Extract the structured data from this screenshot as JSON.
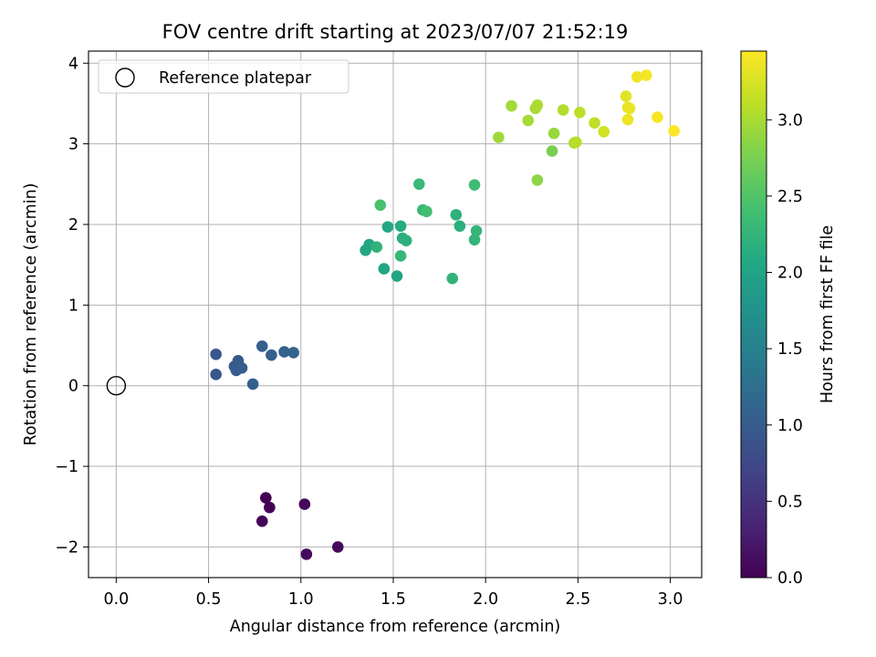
{
  "chart_data": {
    "type": "scatter",
    "title": "FOV centre drift starting at 2023/07/07 21:52:19",
    "xlabel": "Angular distance from reference (arcmin)",
    "ylabel": "Rotation from reference (arcmin)",
    "xlim": [
      -0.15,
      3.17
    ],
    "ylim": [
      -2.38,
      4.15
    ],
    "xticks": [
      0.0,
      0.5,
      1.0,
      1.5,
      2.0,
      2.5,
      3.0
    ],
    "xtick_labels": [
      "0.0",
      "0.5",
      "1.0",
      "1.5",
      "2.0",
      "2.5",
      "3.0"
    ],
    "yticks": [
      -2,
      -1,
      0,
      1,
      2,
      3,
      4
    ],
    "ytick_labels": [
      "−2",
      "−1",
      "0",
      "1",
      "2",
      "3",
      "4"
    ],
    "grid": true,
    "legend": {
      "position": "top-left",
      "entries": [
        "Reference platepar"
      ]
    },
    "reference_point": {
      "label": "Reference platepar",
      "x": 0.0,
      "y": 0.0
    },
    "colorbar": {
      "label": "Hours from first FF file",
      "colormap": "viridis",
      "range": [
        0.0,
        3.45
      ],
      "ticks": [
        0.0,
        0.5,
        1.0,
        1.5,
        2.0,
        2.5,
        3.0
      ],
      "tick_labels": [
        "0.0",
        "0.5",
        "1.0",
        "1.5",
        "2.0",
        "2.5",
        "3.0"
      ]
    },
    "series": [
      {
        "points": [
          [
            0.81,
            -1.39,
            0.0
          ],
          [
            0.83,
            -1.51,
            0.02
          ],
          [
            0.79,
            -1.68,
            0.04
          ],
          [
            1.02,
            -1.47,
            0.06
          ],
          [
            1.2,
            -2.0,
            0.08
          ],
          [
            1.03,
            -2.09,
            0.1
          ],
          [
            0.54,
            0.39,
            0.93
          ],
          [
            0.54,
            0.14,
            0.95
          ],
          [
            0.66,
            0.31,
            0.97
          ],
          [
            0.64,
            0.24,
            0.99
          ],
          [
            0.65,
            0.19,
            1.0
          ],
          [
            0.68,
            0.22,
            1.01
          ],
          [
            0.74,
            0.02,
            1.02
          ],
          [
            0.79,
            0.49,
            1.03
          ],
          [
            0.84,
            0.38,
            1.05
          ],
          [
            0.91,
            0.42,
            1.07
          ],
          [
            0.96,
            0.41,
            1.09
          ],
          [
            1.35,
            1.68,
            2.05
          ],
          [
            1.37,
            1.75,
            2.06
          ],
          [
            1.41,
            1.72,
            2.22
          ],
          [
            1.43,
            2.24,
            2.45
          ],
          [
            1.45,
            1.45,
            2.03
          ],
          [
            1.47,
            1.97,
            2.07
          ],
          [
            1.52,
            1.36,
            2.01
          ],
          [
            1.54,
            1.98,
            2.12
          ],
          [
            1.54,
            1.61,
            2.28
          ],
          [
            1.55,
            1.83,
            2.15
          ],
          [
            1.57,
            1.8,
            2.18
          ],
          [
            1.64,
            2.5,
            2.32
          ],
          [
            1.66,
            2.18,
            2.3
          ],
          [
            1.68,
            2.16,
            2.4
          ],
          [
            1.82,
            1.33,
            2.24
          ],
          [
            1.84,
            2.12,
            2.2
          ],
          [
            1.86,
            1.98,
            2.17
          ],
          [
            1.94,
            2.49,
            2.35
          ],
          [
            1.94,
            1.81,
            2.25
          ],
          [
            1.95,
            1.92,
            2.27
          ],
          [
            2.07,
            3.08,
            2.95
          ],
          [
            2.14,
            3.47,
            2.97
          ],
          [
            2.23,
            3.29,
            2.99
          ],
          [
            2.27,
            3.44,
            3.0
          ],
          [
            2.28,
            3.48,
            3.02
          ],
          [
            2.28,
            2.55,
            2.85
          ],
          [
            2.36,
            2.91,
            2.75
          ],
          [
            2.37,
            3.13,
            2.92
          ],
          [
            2.42,
            3.42,
            3.05
          ],
          [
            2.48,
            3.01,
            3.04
          ],
          [
            2.49,
            3.02,
            3.08
          ],
          [
            2.51,
            3.39,
            3.1
          ],
          [
            2.59,
            3.26,
            3.12
          ],
          [
            2.64,
            3.15,
            3.22
          ],
          [
            2.76,
            3.59,
            3.3
          ],
          [
            2.77,
            3.45,
            3.32
          ],
          [
            2.78,
            3.44,
            3.34
          ],
          [
            2.77,
            3.3,
            3.36
          ],
          [
            2.82,
            3.83,
            3.38
          ],
          [
            2.87,
            3.85,
            3.4
          ],
          [
            2.93,
            3.33,
            3.42
          ],
          [
            3.02,
            3.16,
            3.44
          ]
        ]
      }
    ]
  }
}
